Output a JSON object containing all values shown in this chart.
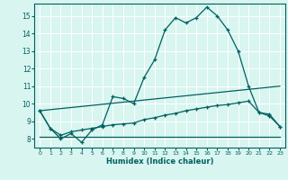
{
  "xlabel": "Humidex (Indice chaleur)",
  "bg_color": "#d8f5f0",
  "line_color": "#006060",
  "grid_color": "#ffffff",
  "xlim": [
    -0.5,
    23.5
  ],
  "ylim": [
    7.5,
    15.7
  ],
  "yticks": [
    8,
    9,
    10,
    11,
    12,
    13,
    14,
    15
  ],
  "xticks": [
    0,
    1,
    2,
    3,
    4,
    5,
    6,
    7,
    8,
    9,
    10,
    11,
    12,
    13,
    14,
    15,
    16,
    17,
    18,
    19,
    20,
    21,
    22,
    23
  ],
  "line1_x": [
    0,
    1,
    2,
    3,
    4,
    5,
    6,
    7,
    8,
    9,
    10,
    11,
    12,
    13,
    14,
    15,
    16,
    17,
    18,
    19,
    20,
    21,
    22,
    23
  ],
  "line1_y": [
    9.6,
    8.6,
    8.0,
    8.3,
    7.8,
    8.5,
    8.8,
    10.4,
    10.3,
    10.0,
    11.5,
    12.5,
    14.2,
    14.9,
    14.6,
    14.9,
    15.5,
    15.0,
    14.2,
    13.0,
    11.0,
    9.5,
    9.4,
    8.7
  ],
  "line2_x": [
    0,
    1,
    2,
    3,
    4,
    5,
    6,
    7,
    8,
    9,
    10,
    11,
    12,
    13,
    14,
    15,
    16,
    17,
    18,
    19,
    20,
    21,
    22,
    23
  ],
  "line2_y": [
    8.1,
    8.1,
    8.1,
    8.1,
    8.1,
    8.1,
    8.1,
    8.1,
    8.1,
    8.1,
    8.1,
    8.1,
    8.1,
    8.1,
    8.1,
    8.1,
    8.1,
    8.1,
    8.1,
    8.1,
    8.1,
    8.1,
    8.1,
    8.1
  ],
  "line3_x": [
    0,
    1,
    2,
    3,
    4,
    5,
    6,
    7,
    8,
    9,
    10,
    11,
    12,
    13,
    14,
    15,
    16,
    17,
    18,
    19,
    20,
    21,
    22,
    23
  ],
  "line3_y": [
    9.6,
    8.6,
    8.2,
    8.4,
    8.5,
    8.6,
    8.7,
    8.8,
    8.85,
    8.9,
    9.1,
    9.2,
    9.35,
    9.45,
    9.6,
    9.7,
    9.8,
    9.9,
    9.95,
    10.05,
    10.15,
    9.5,
    9.3,
    8.7
  ],
  "line4_x": [
    0,
    23
  ],
  "line4_y": [
    9.6,
    11.0
  ]
}
